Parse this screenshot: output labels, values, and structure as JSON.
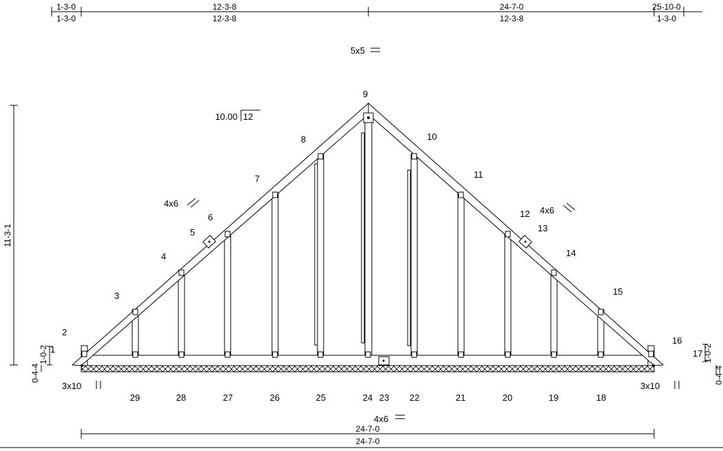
{
  "top_dimensions": {
    "cumulative": [
      "1-3-0",
      "12-3-8",
      "24-7-0",
      "25-10-0"
    ],
    "segments": [
      "1-3-0",
      "12-3-8",
      "12-3-8",
      "1-3-0"
    ]
  },
  "peak_plate": "5x5",
  "pitch": {
    "rise": "10.00",
    "run": "12"
  },
  "height_left": "11-3-1",
  "heel_left": {
    "upper": "1-0-2",
    "lower": "0-4-4"
  },
  "heel_right": {
    "upper": "1-0-2",
    "lower": "0-4-4"
  },
  "plates": {
    "left_web": "4x6",
    "right_web": "4x6",
    "left_heel": "3x10",
    "right_heel": "3x10",
    "bottom_center": "4x6"
  },
  "top_joints": [
    "1",
    "2",
    "3",
    "4",
    "5",
    "6",
    "7",
    "8",
    "9",
    "10",
    "11",
    "12",
    "13",
    "14",
    "15",
    "16",
    "17"
  ],
  "bottom_joints": [
    "29",
    "28",
    "27",
    "26",
    "25",
    "24",
    "23",
    "22",
    "21",
    "20",
    "19",
    "18"
  ],
  "bottom_dimensions": [
    "24-7-0",
    "24-7-0"
  ],
  "colors": {
    "line": "#000000",
    "hatch": "#000000",
    "background": "#ffffff"
  }
}
